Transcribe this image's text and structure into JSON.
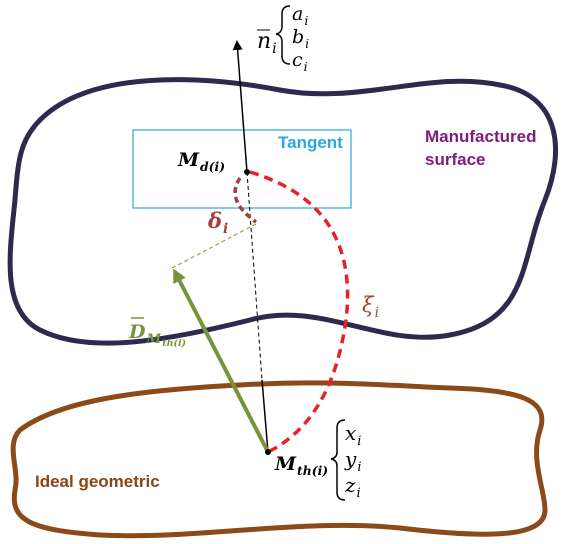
{
  "normal": {
    "symbol": "n",
    "index": "i",
    "components": [
      {
        "symbol": "a",
        "index": "i"
      },
      {
        "symbol": "b",
        "index": "i"
      },
      {
        "symbol": "c",
        "index": "i"
      }
    ]
  },
  "design_point": {
    "symbol": "M",
    "index": "d(i)"
  },
  "tangent": "Tangent",
  "manufactured_surface": [
    "Manufactured",
    "surface"
  ],
  "deviation": {
    "symbol": "δ",
    "index": "i"
  },
  "arc": {
    "symbol": "ξ",
    "index": "i"
  },
  "vector": {
    "symbol": "D",
    "index": "M",
    "subindex": "th(i)"
  },
  "theory_point": {
    "symbol": "M",
    "index": "th(i)",
    "coordinates": [
      {
        "symbol": "x",
        "index": "i"
      },
      {
        "symbol": "y",
        "index": "i"
      },
      {
        "symbol": "z",
        "index": "i"
      }
    ]
  },
  "ideal_geometric": "Ideal geometric"
}
